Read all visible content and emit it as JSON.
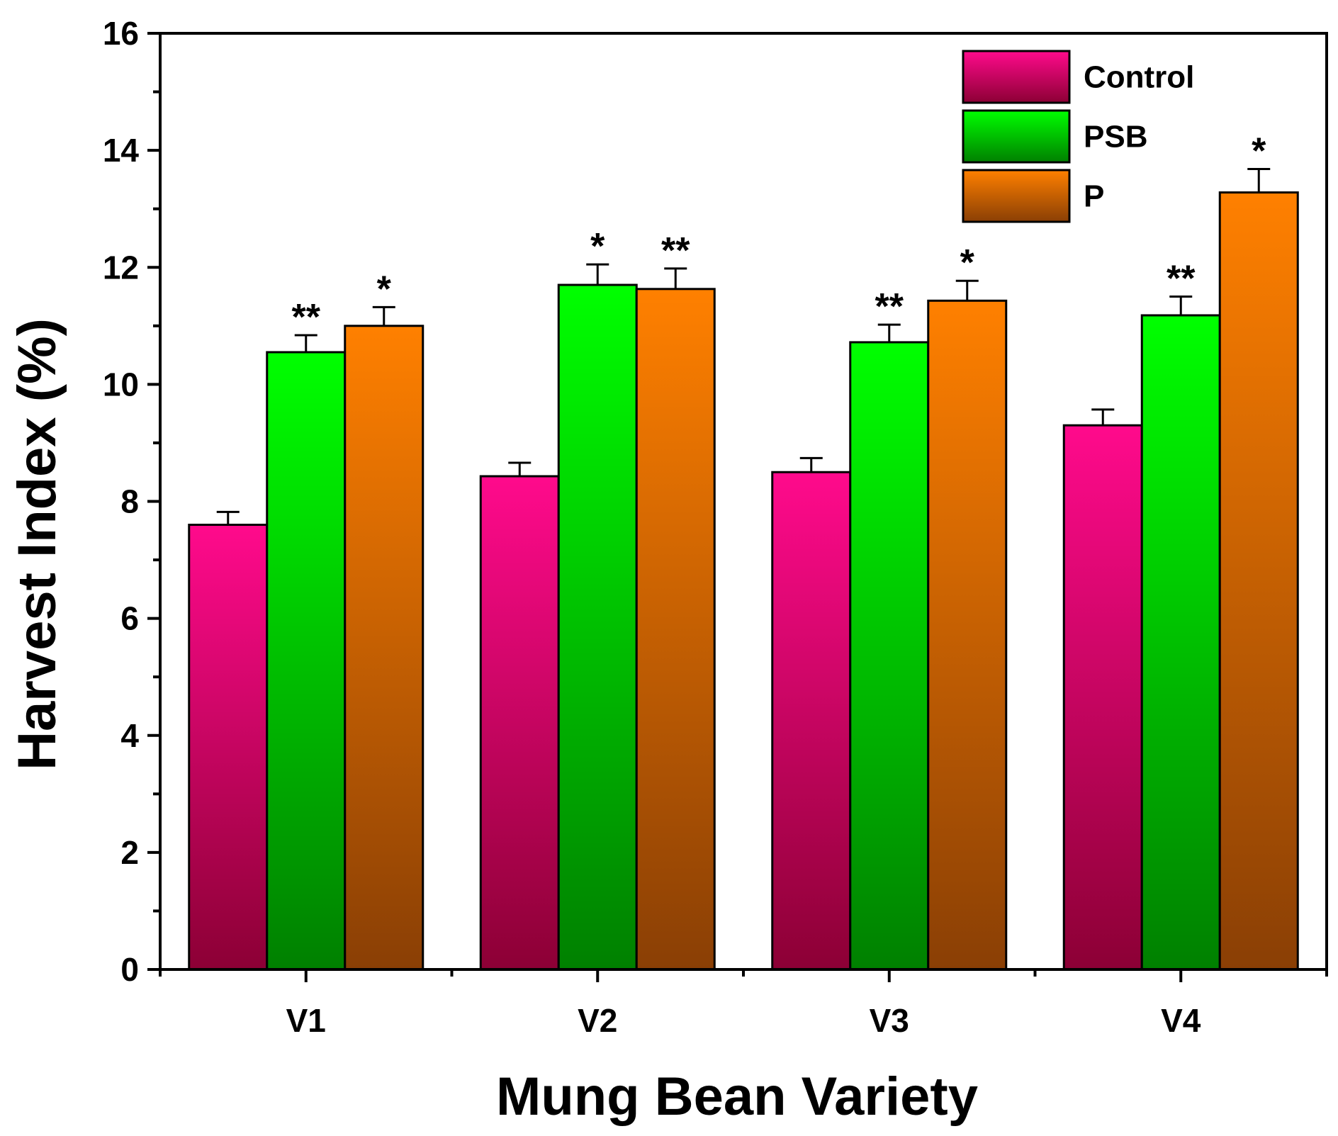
{
  "chart_data": {
    "type": "bar",
    "title": "",
    "xlabel": "Mung Bean Variety",
    "ylabel": "Harvest Index (%)",
    "ylim": [
      0,
      16
    ],
    "yticks": [
      0,
      2,
      4,
      6,
      8,
      10,
      12,
      14,
      16
    ],
    "grid": false,
    "legend_position": "top-right",
    "categories": [
      "V1",
      "V2",
      "V3",
      "V4"
    ],
    "series": [
      {
        "name": "Control",
        "color_top": "#ff0a8c",
        "color_bottom": "#8c0035",
        "values": [
          7.6,
          8.43,
          8.5,
          9.3
        ],
        "errors": [
          0.22,
          0.23,
          0.24,
          0.27
        ],
        "significance": [
          "",
          "",
          "",
          ""
        ]
      },
      {
        "name": "PSB",
        "color_top": "#00ff00",
        "color_bottom": "#008000",
        "values": [
          10.55,
          11.7,
          10.72,
          11.18
        ],
        "errors": [
          0.29,
          0.35,
          0.3,
          0.32
        ],
        "significance": [
          "**",
          "*",
          "**",
          "**"
        ]
      },
      {
        "name": "P",
        "color_top": "#ff8000",
        "color_bottom": "#8a3f05",
        "values": [
          11.0,
          11.63,
          11.43,
          13.28
        ],
        "errors": [
          0.32,
          0.35,
          0.34,
          0.4
        ],
        "significance": [
          "*",
          "**",
          "*",
          "*"
        ]
      }
    ]
  }
}
